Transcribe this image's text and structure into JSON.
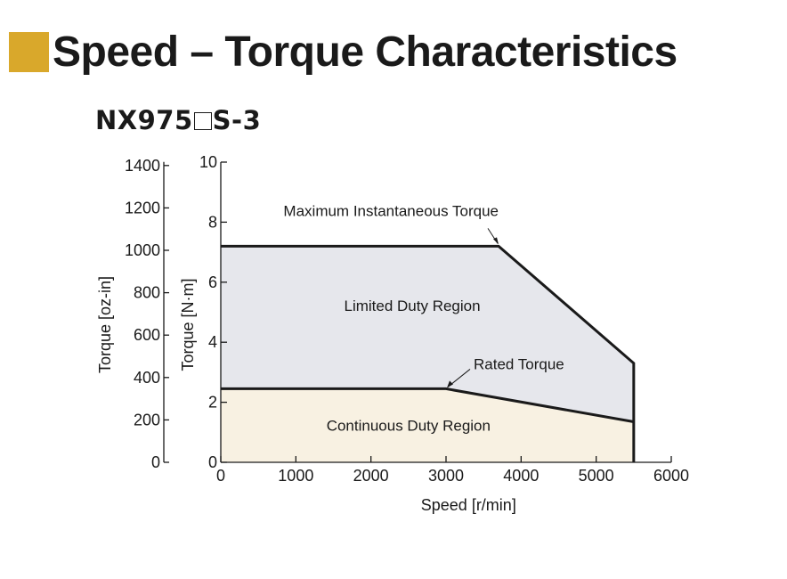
{
  "header": {
    "title": "Speed – Torque Characteristics",
    "model_prefix": "NX975",
    "model_suffix": "S-3",
    "accent_color": "#d9a82b"
  },
  "chart_data": {
    "type": "area",
    "xlabel": "Speed [r/min]",
    "ylabel": "Torque [N·m]",
    "ylabel_secondary": "Torque [oz-in]",
    "xlim": [
      0,
      6000
    ],
    "ylim": [
      0,
      10
    ],
    "ylim_secondary": [
      0,
      1416
    ],
    "x_ticks": [
      0,
      1000,
      2000,
      3000,
      4000,
      5000,
      6000
    ],
    "y_ticks": [
      0,
      2,
      4,
      6,
      8,
      10
    ],
    "y_ticks_secondary": [
      0,
      200,
      400,
      600,
      800,
      1000,
      1200,
      1400
    ],
    "grid": false,
    "series": [
      {
        "name": "Maximum Instantaneous Torque",
        "x": [
          0,
          3700,
          5500,
          5500
        ],
        "y": [
          7.2,
          7.2,
          3.3,
          0
        ],
        "color": "#1a1a1a"
      },
      {
        "name": "Rated Torque",
        "x": [
          0,
          3000,
          5500
        ],
        "y": [
          2.45,
          2.45,
          1.35
        ],
        "color": "#1a1a1a"
      }
    ],
    "regions": [
      {
        "label": "Limited Duty Region",
        "fill": "#e6e7ec"
      },
      {
        "label": "Continuous Duty Region",
        "fill": "#f8f1e2"
      }
    ],
    "annotations": [
      {
        "text": "Maximum Instantaneous Torque",
        "points_to": [
          3700,
          7.2
        ]
      },
      {
        "text": "Rated Torque",
        "points_to": [
          3000,
          2.45
        ]
      }
    ]
  }
}
